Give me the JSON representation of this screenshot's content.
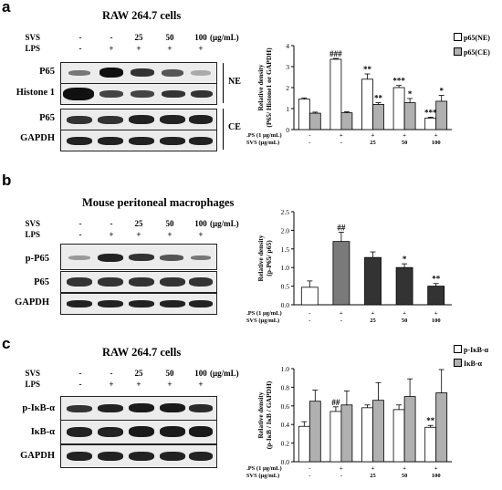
{
  "panels": [
    {
      "letter": "a",
      "title": "RAW 264.7 cells",
      "conditions": {
        "row1_label": "SVS",
        "row1_values": [
          "-",
          "-",
          "25",
          "50",
          "100"
        ],
        "row1_unit": "(μg/mL)",
        "row2_label": "LPS",
        "row2_values": [
          "-",
          "+",
          "+",
          "+",
          "+"
        ]
      },
      "blot_rows": [
        "P65",
        "Histone 1",
        "P65",
        "GAPDH"
      ],
      "fractions": [
        "NE",
        "CE"
      ]
    },
    {
      "letter": "b",
      "title": "Mouse peritoneal macrophages",
      "conditions": {
        "row1_label": "SVS",
        "row1_values": [
          "-",
          "-",
          "25",
          "50",
          "100"
        ],
        "row1_unit": "(μg/mL)",
        "row2_label": "LPS",
        "row2_values": [
          "-",
          "+",
          "+",
          "+",
          "+"
        ]
      },
      "blot_rows": [
        "p-P65",
        "P65",
        "GAPDH"
      ]
    },
    {
      "letter": "c",
      "title": "RAW 264.7 cells",
      "conditions": {
        "row1_label": "SVS",
        "row1_values": [
          "-",
          "-",
          "25",
          "50",
          "100"
        ],
        "row1_unit": "(μg/mL)",
        "row2_label": "LPS",
        "row2_values": [
          "-",
          "+",
          "+",
          "+",
          "+"
        ]
      },
      "blot_rows": [
        "p-IκB-α",
        "IκB-α",
        "GAPDH"
      ]
    }
  ],
  "chart_data": [
    {
      "type": "bar",
      "ylabel": "Relative density\n(P65/ Histone1 or GAPDH)",
      "ylim": [
        0,
        4
      ],
      "yticks": [
        "0",
        "1",
        "2",
        "3",
        "4"
      ],
      "legend_position": "top-right",
      "groups": 5,
      "x_row_labels": [
        {
          "label": "LPS (1 μg/mL)",
          "values": [
            "-",
            "+",
            "+",
            "+",
            "+"
          ]
        },
        {
          "label": "SVS (μg/mL)",
          "values": [
            "-",
            "-",
            "25",
            "50",
            "100"
          ]
        }
      ],
      "series": [
        {
          "name": "p65(NE)",
          "color": "#ffffff",
          "values": [
            1.45,
            3.35,
            2.4,
            2.0,
            0.55
          ],
          "errors": [
            0.06,
            0.04,
            0.25,
            0.1,
            0.04
          ],
          "annotations": [
            "",
            "###",
            "**",
            "***",
            "***"
          ]
        },
        {
          "name": "p65(CE)",
          "color": "#b0b0b0",
          "values": [
            0.78,
            0.8,
            1.2,
            1.28,
            1.35
          ],
          "errors": [
            0.05,
            0.05,
            0.08,
            0.2,
            0.28
          ],
          "annotations": [
            "",
            "",
            "**",
            "*",
            "*"
          ]
        }
      ]
    },
    {
      "type": "bar",
      "ylabel": "Relative density\n(p-P65/ p65)",
      "ylim": [
        0,
        2.5
      ],
      "yticks": [
        "0.0",
        "0.5",
        "1.0",
        "1.5",
        "2.0",
        "2.5"
      ],
      "groups": 5,
      "x_row_labels": [
        {
          "label": "LPS (1 μg/mL)",
          "values": [
            "-",
            "+",
            "+",
            "+",
            "+"
          ]
        },
        {
          "label": "SVS (μg/mL)",
          "values": [
            "-",
            "-",
            "25",
            "50",
            "100"
          ]
        }
      ],
      "series": [
        {
          "name": "",
          "values": [
            0.47,
            1.7,
            1.27,
            1.0,
            0.5
          ],
          "errors": [
            0.17,
            0.25,
            0.15,
            0.1,
            0.07
          ],
          "annotations": [
            "",
            "##",
            "",
            "*",
            "**"
          ],
          "bar_colors": [
            "#ffffff",
            "#7a7a7a",
            "#333333",
            "#333333",
            "#333333"
          ]
        }
      ]
    },
    {
      "type": "bar",
      "ylabel": "Relative density\n(p-IκB / IκB / GAPDH)",
      "ylim": [
        0,
        1.0
      ],
      "yticks": [
        "0.0",
        "0.2",
        "0.4",
        "0.6",
        "0.8",
        "1.0"
      ],
      "legend_position": "top-right",
      "groups": 5,
      "x_row_labels": [
        {
          "label": "LPS (1 μg/mL)",
          "values": [
            "-",
            "+",
            "+",
            "+",
            "+"
          ]
        },
        {
          "label": "SVS (μg/mL)",
          "values": [
            "-",
            "-",
            "25",
            "50",
            "100"
          ]
        }
      ],
      "series": [
        {
          "name": "p-IκB-α",
          "color": "#ffffff",
          "values": [
            0.38,
            0.54,
            0.58,
            0.56,
            0.37
          ],
          "errors": [
            0.05,
            0.05,
            0.03,
            0.05,
            0.02
          ],
          "annotations": [
            "",
            "##",
            "",
            "",
            "**"
          ]
        },
        {
          "name": "IκB-α",
          "color": "#b0b0b0",
          "values": [
            0.65,
            0.61,
            0.66,
            0.7,
            0.74
          ],
          "errors": [
            0.12,
            0.15,
            0.19,
            0.19,
            0.25
          ],
          "annotations": [
            "",
            "",
            "",
            "",
            ""
          ]
        }
      ]
    }
  ]
}
